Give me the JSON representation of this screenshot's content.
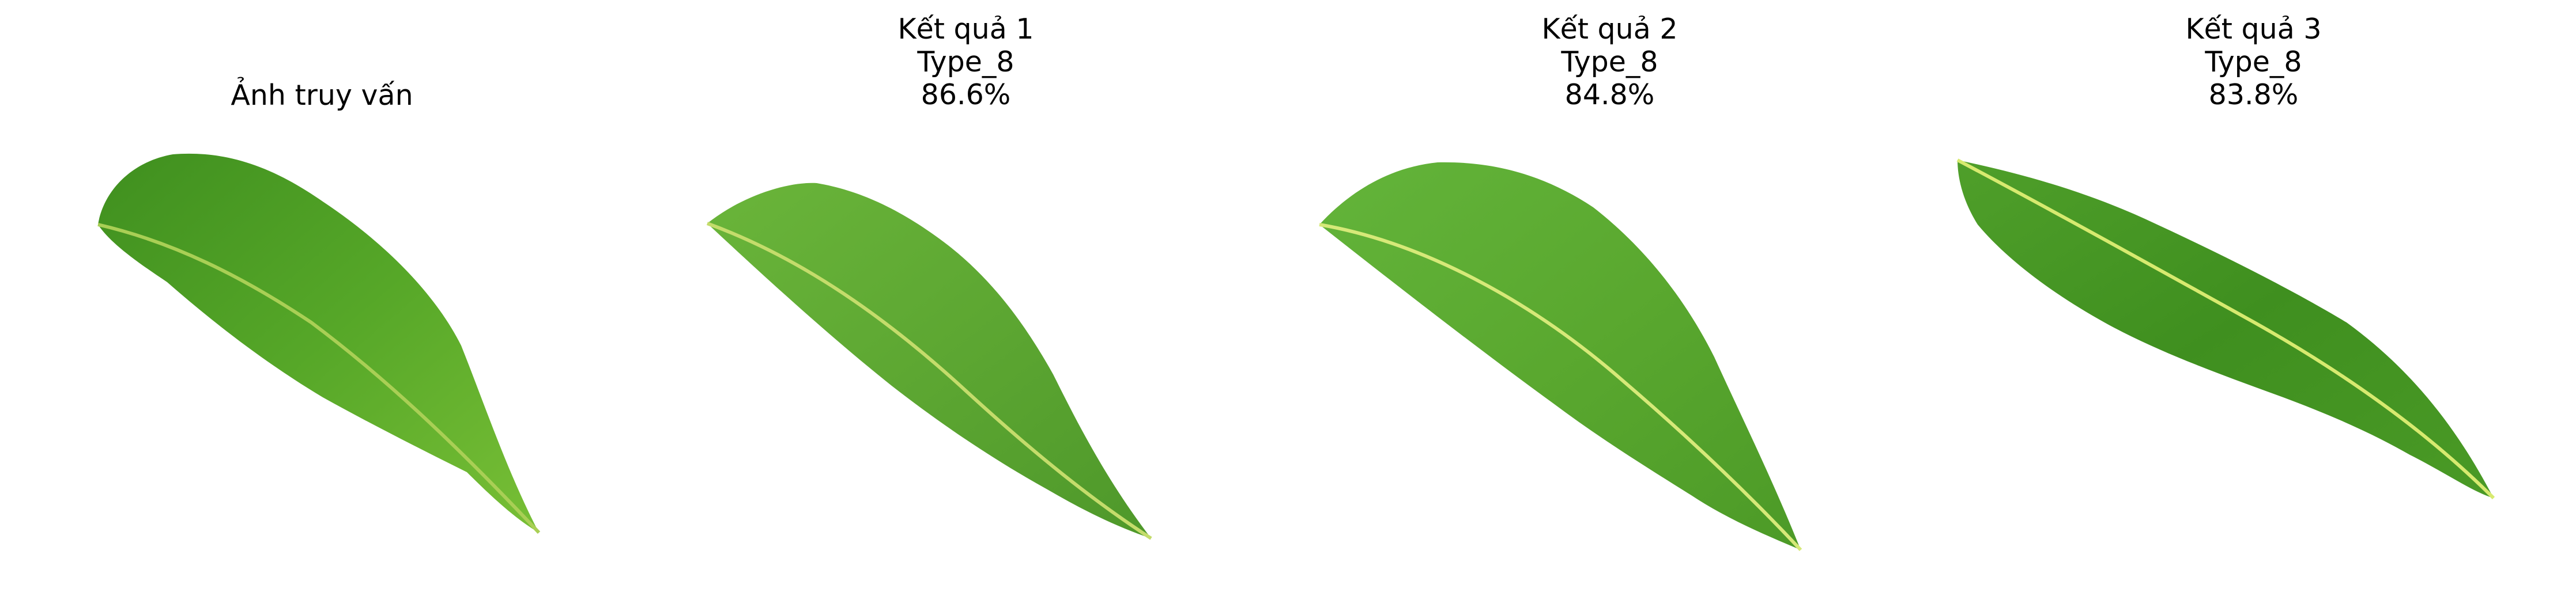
{
  "query": {
    "title": "Ảnh truy vấn"
  },
  "results": [
    {
      "title": "Kết quả 1",
      "type": "Type_8",
      "score": "86.6%"
    },
    {
      "title": "Kết quả 2",
      "type": "Type_8",
      "score": "84.8%"
    },
    {
      "title": "Kết quả 3",
      "type": "Type_8",
      "score": "83.8%"
    }
  ],
  "colors": {
    "leaf_dark": "#3f8f1f",
    "leaf_mid": "#5aa82a",
    "leaf_light": "#79bf3c",
    "midrib": "#c7e06a",
    "background": "#ffffff"
  }
}
